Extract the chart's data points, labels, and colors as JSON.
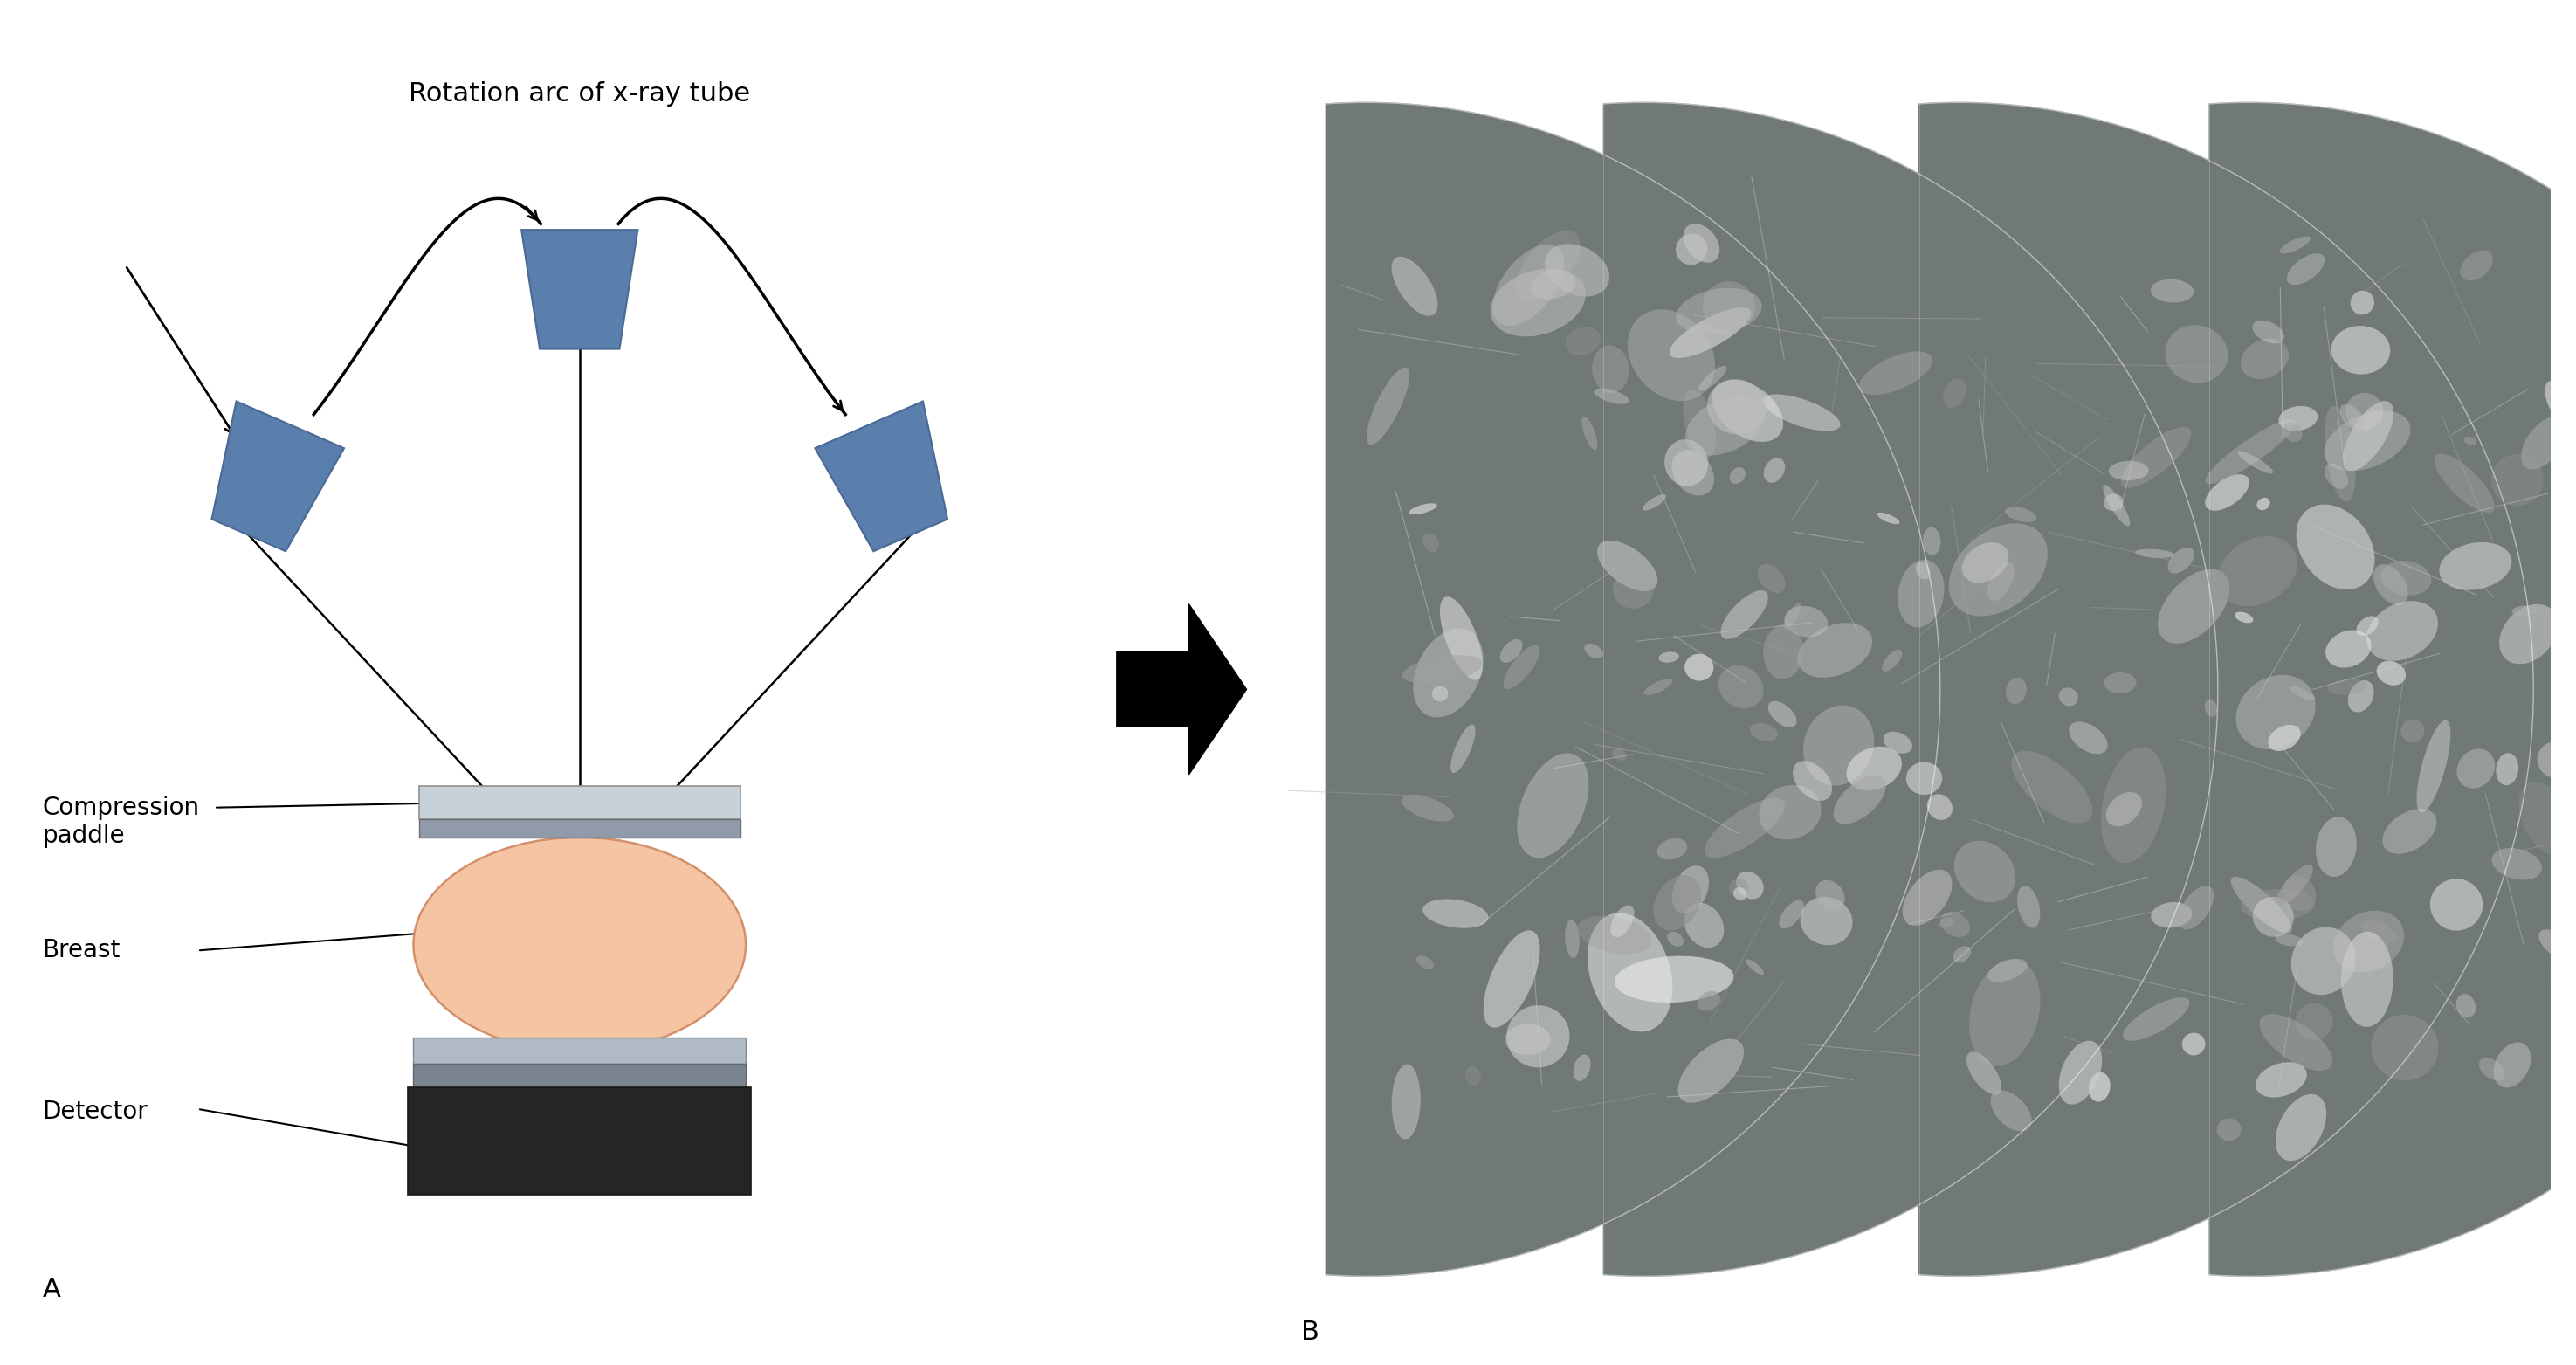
{
  "title_left": "Rotation arc of x-ray tube",
  "label_A": "A",
  "label_B": "B",
  "label_compression": "Compression\npaddle",
  "label_breast": "Breast",
  "label_detector": "Detector",
  "tube_color": "#5b7fad",
  "tube_color_dark": "#4a6a95",
  "breast_color": "#f5c5a3",
  "breast_outline": "#d4906a",
  "text_color": "#000000",
  "bg_color": "#ffffff",
  "fig_width": 29.5,
  "fig_height": 15.63
}
